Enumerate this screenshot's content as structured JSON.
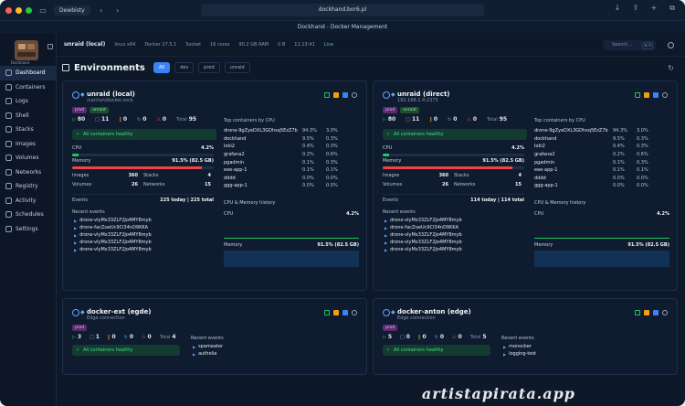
{
  "browser": {
    "profile": "Dewbisty",
    "url": "dockhand.bor6.pl",
    "tab_title": "Dockhand - Docker Management"
  },
  "sidebar": {
    "logo_text": "Dockhand",
    "items": [
      {
        "label": "Dashboard",
        "icon": "dashboard-icon"
      },
      {
        "label": "Containers",
        "icon": "box-icon"
      },
      {
        "label": "Logs",
        "icon": "file-text-icon"
      },
      {
        "label": "Shell",
        "icon": "terminal-icon"
      },
      {
        "label": "Stacks",
        "icon": "layers-icon"
      },
      {
        "label": "Images",
        "icon": "image-icon"
      },
      {
        "label": "Volumes",
        "icon": "database-icon"
      },
      {
        "label": "Networks",
        "icon": "network-icon"
      },
      {
        "label": "Registry",
        "icon": "registry-icon"
      },
      {
        "label": "Activity",
        "icon": "activity-icon"
      },
      {
        "label": "Schedules",
        "icon": "calendar-icon"
      },
      {
        "label": "Settings",
        "icon": "gear-icon"
      }
    ]
  },
  "topbar": {
    "env": "unraid (local)",
    "os": "linux x64",
    "docker": "Docker 27.5.1",
    "socket": "Socket",
    "cores": "16 cores",
    "ram": "90.2 GB RAM",
    "disk": "0 B",
    "time": "11:13:41",
    "live": "Live",
    "search_placeholder": "Search...",
    "shortcut": "⌘ K"
  },
  "header": {
    "title": "Environments",
    "filters": [
      "All",
      "dev",
      "prod",
      "unraid"
    ]
  },
  "cards": [
    {
      "name": "unraid (local)",
      "sub": "/var/run/docker.sock",
      "tags": [
        "prod",
        "unraid"
      ],
      "running": "80",
      "stopped": "11",
      "paused": "0",
      "restarting": "0",
      "unhealthy": "0",
      "total_label": "Total",
      "total": "95",
      "healthy": "All containers healthy",
      "cpu_label": "CPU",
      "cpu": "4.2%",
      "cpu_frac": 0.042,
      "mem_label": "Memory",
      "mem": "91.5% (82.5 GB)",
      "mem_frac": 0.915,
      "images_label": "Images",
      "images": "360",
      "stacks_label": "Stacks",
      "stacks": "4",
      "volumes_label": "Volumes",
      "volumes": "26",
      "networks_label": "Networks",
      "networks": "15",
      "events_label": "Events",
      "events": "225 today | 225 total",
      "recent_label": "Recent events",
      "recent": [
        "drone-vlyMx33ZLF2Jo4MY8myb",
        "drone-facZswUc9CI34nD9KKA",
        "drone-vlyMx33ZLF2Jo4MY8myb",
        "drone-vlyMx33ZLF2Jo4MY8myb",
        "drone-vlyMx33ZLF2Jo4MY8myb"
      ],
      "top_label": "Top containers by CPU",
      "top": [
        {
          "name": "drone-9gZyeDXL3GDhsq5EzZ7b",
          "cpu": "94.3%",
          "mem": "3.0%"
        },
        {
          "name": "dockhand",
          "cpu": "9.5%",
          "mem": "0.3%"
        },
        {
          "name": "loki2",
          "cpu": "0.4%",
          "mem": "0.3%"
        },
        {
          "name": "grafana2",
          "cpu": "0.2%",
          "mem": "0.6%"
        },
        {
          "name": "pgadmin",
          "cpu": "0.1%",
          "mem": "0.3%"
        },
        {
          "name": "eee-app-1",
          "cpu": "0.1%",
          "mem": "0.1%"
        },
        {
          "name": "dddd",
          "cpu": "0.0%",
          "mem": "0.0%"
        },
        {
          "name": "ggg-app-1",
          "cpu": "0.0%",
          "mem": "0.0%"
        }
      ],
      "history_label": "CPU & Memory history",
      "hist_cpu_label": "CPU",
      "hist_cpu": "4.2%",
      "hist_mem_label": "Memory",
      "hist_mem": "91.5% (82.5 GB)"
    },
    {
      "name": "unraid (direct)",
      "sub": "192.168.1.4:2375",
      "tags": [
        "prod",
        "unraid"
      ],
      "running": "80",
      "stopped": "11",
      "paused": "0",
      "restarting": "0",
      "unhealthy": "0",
      "total_label": "Total",
      "total": "95",
      "healthy": "All containers healthy",
      "cpu_label": "CPU",
      "cpu": "4.2%",
      "cpu_frac": 0.042,
      "mem_label": "Memory",
      "mem": "91.5% (82.5 GB)",
      "mem_frac": 0.915,
      "images_label": "Images",
      "images": "360",
      "stacks_label": "Stacks",
      "stacks": "4",
      "volumes_label": "Volumes",
      "volumes": "26",
      "networks_label": "Networks",
      "networks": "15",
      "events_label": "Events",
      "events": "114 today | 114 total",
      "recent_label": "Recent events",
      "recent": [
        "drone-vlyMx33ZLF2Jo4MY8myb",
        "drone-facZswUc9CI34nD9KKA",
        "drone-vlyMx33ZLF2Jo4MY8myb",
        "drone-vlyMx33ZLF2Jo4MY8myb",
        "drone-vlyMx33ZLF2Jo4MY8myb"
      ],
      "top_label": "Top containers by CPU",
      "top": [
        {
          "name": "drone-9gZyeDXL3GDhsq5EzZ7b",
          "cpu": "94.3%",
          "mem": "3.0%"
        },
        {
          "name": "dockhand",
          "cpu": "9.5%",
          "mem": "0.3%"
        },
        {
          "name": "loki2",
          "cpu": "0.4%",
          "mem": "0.3%"
        },
        {
          "name": "grafana2",
          "cpu": "0.2%",
          "mem": "0.6%"
        },
        {
          "name": "pgadmin",
          "cpu": "0.1%",
          "mem": "0.3%"
        },
        {
          "name": "eee-app-1",
          "cpu": "0.1%",
          "mem": "0.1%"
        },
        {
          "name": "dddd",
          "cpu": "0.0%",
          "mem": "0.0%"
        },
        {
          "name": "ggg-app-1",
          "cpu": "0.0%",
          "mem": "0.0%"
        }
      ],
      "history_label": "CPU & Memory history",
      "hist_cpu_label": "CPU",
      "hist_cpu": "4.2%",
      "hist_mem_label": "Memory",
      "hist_mem": "91.5% (82.5 GB)"
    },
    {
      "name": "docker-ext (egde)",
      "sub": "Edge connection",
      "tags": [
        "prod"
      ],
      "running": "3",
      "stopped": "1",
      "paused": "0",
      "restarting": "0",
      "unhealthy": "0",
      "total_label": "Total",
      "total": "4",
      "healthy": "All containers healthy",
      "recent_label": "Recent events",
      "recent": [
        "spameater",
        "authelia"
      ]
    },
    {
      "name": "docker-anton (edge)",
      "sub": "Edge connection",
      "tags": [
        "prod"
      ],
      "running": "5",
      "stopped": "0",
      "paused": "0",
      "restarting": "0",
      "unhealthy": "0",
      "total_label": "Total",
      "total": "5",
      "healthy": "All containers healthy",
      "recent_label": "Recent events",
      "recent": [
        "monocker",
        "logging-test"
      ]
    }
  ],
  "watermark": "artistapirata.app",
  "colors": {
    "accent": "#3b82f6",
    "healthy": "#4ade80",
    "memory": "#ef4444",
    "cpu": "#22c55e"
  }
}
